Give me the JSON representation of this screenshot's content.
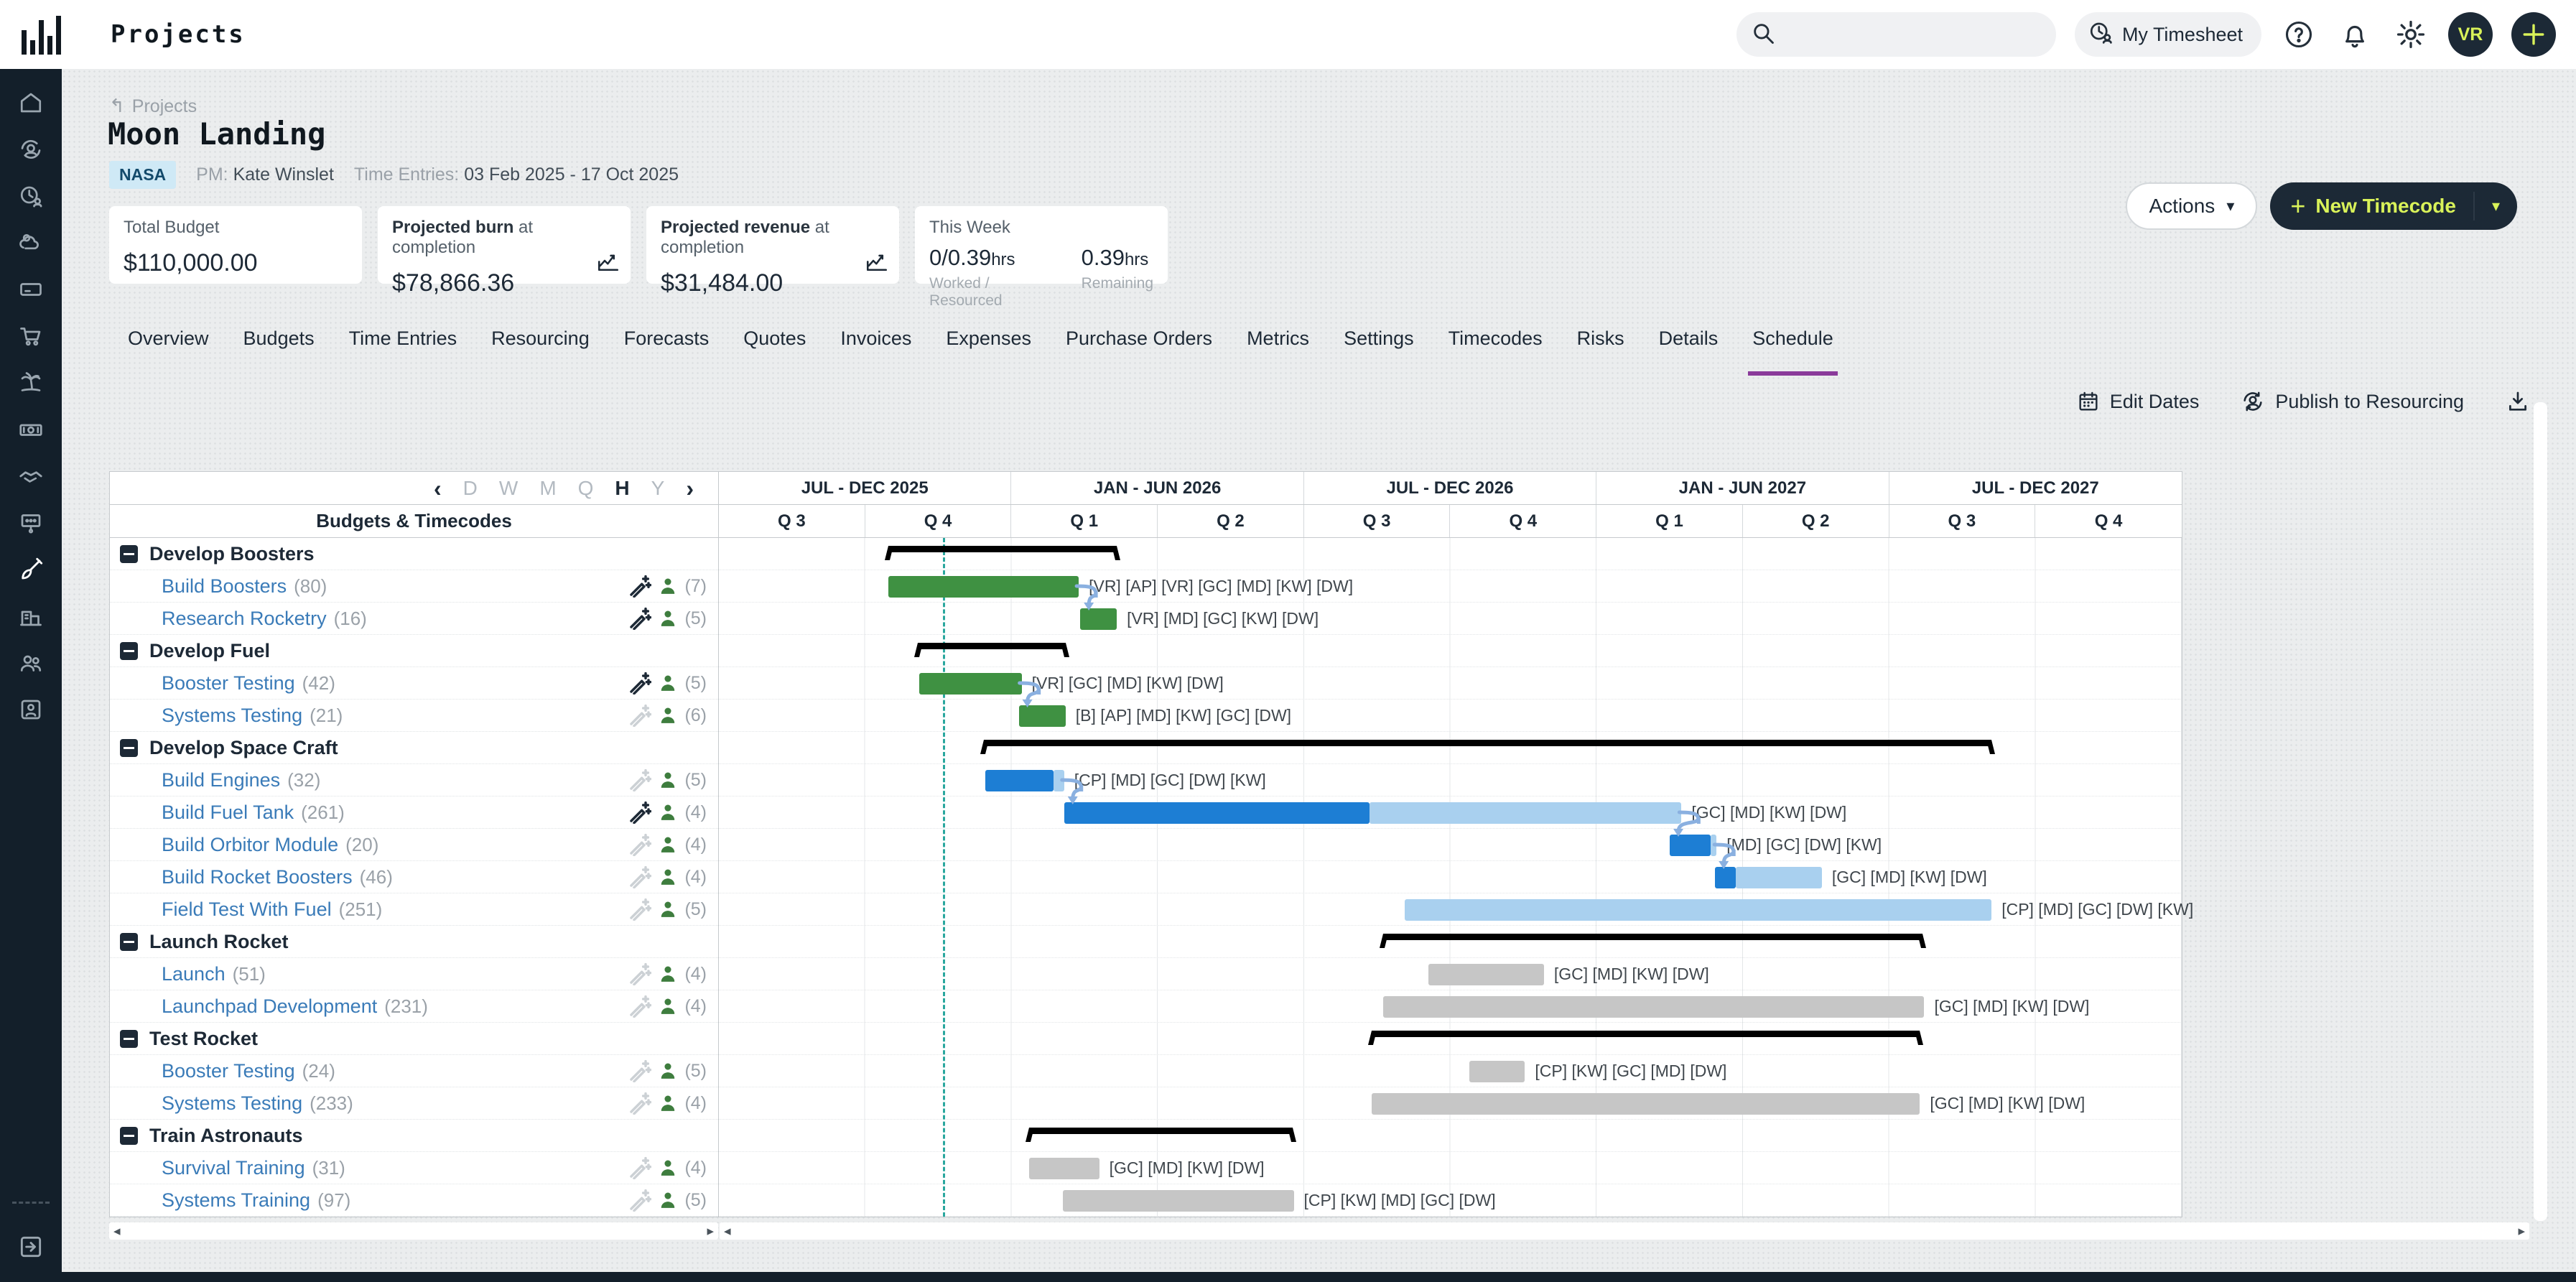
{
  "topbar": {
    "app_title": "Projects",
    "search_placeholder": "",
    "my_timesheet": "My Timesheet",
    "avatar_initials": "VR"
  },
  "breadcrumb": {
    "label": "Projects"
  },
  "project": {
    "title": "Moon Landing",
    "client": "NASA",
    "pm_label": "PM:",
    "pm": "Kate Winslet",
    "time_entries_label": "Time Entries:",
    "time_entries": "03 Feb 2025 - 17 Oct 2025",
    "actions_label": "Actions",
    "new_timecode_label": "New Timecode"
  },
  "cards": {
    "total_budget": {
      "title": "Total Budget",
      "value": "$110,000.00"
    },
    "projected_burn": {
      "title_bold": "Projected burn",
      "title_rest": " at completion",
      "value": "$78,866.36"
    },
    "projected_revenue": {
      "title_bold": "Projected revenue",
      "title_rest": " at completion",
      "value": "$31,484.00"
    },
    "this_week": {
      "title": "This Week",
      "worked_value": "0/0.39",
      "worked_unit": "hrs",
      "worked_caption": "Worked / Resourced",
      "remaining_value": "0.39",
      "remaining_unit": "hrs",
      "remaining_caption": "Remaining"
    }
  },
  "tabs": {
    "items": [
      "Overview",
      "Budgets",
      "Time Entries",
      "Resourcing",
      "Forecasts",
      "Quotes",
      "Invoices",
      "Expenses",
      "Purchase Orders",
      "Metrics",
      "Settings",
      "Timecodes",
      "Risks",
      "Details",
      "Schedule"
    ],
    "active": "Schedule"
  },
  "toolbar": {
    "edit_dates": "Edit Dates",
    "publish": "Publish to Resourcing"
  },
  "gantt": {
    "zoom_levels": [
      "D",
      "W",
      "M",
      "Q",
      "H",
      "Y"
    ],
    "active_zoom": "H",
    "tree_header": "Budgets & Timecodes",
    "periods": [
      {
        "label": "JUL - DEC 2025",
        "quarters": [
          "Q 3",
          "Q 4"
        ]
      },
      {
        "label": "JAN - JUN 2026",
        "quarters": [
          "Q 1",
          "Q 2"
        ]
      },
      {
        "label": "JUL - DEC 2026",
        "quarters": [
          "Q 3",
          "Q 4"
        ]
      },
      {
        "label": "JAN - JUN 2027",
        "quarters": [
          "Q 1",
          "Q 2"
        ]
      },
      {
        "label": "JUL - DEC 2027",
        "quarters": [
          "Q 3",
          "Q 4"
        ]
      }
    ],
    "today_pct": 15.3,
    "colors": {
      "green": "#3f9142",
      "blue": "#1d7ed4",
      "lightblue": "#a9d0ef",
      "gray": "#c6c6c6",
      "bracket": "#000000",
      "connector": "#8ab0e0",
      "today": "#2aa79e"
    },
    "rows": [
      {
        "type": "group",
        "label": "Develop Boosters",
        "bracket": [
          11.6,
          27.2
        ]
      },
      {
        "type": "task",
        "label": "Build Boosters",
        "count": "(80)",
        "wand": "active",
        "people": "(7)",
        "segments": [
          [
            11.6,
            24.6,
            "green"
          ]
        ],
        "bar_label": "[VR] [AP] [VR] [GC] [MD] [KW] [DW]",
        "connect_next": true
      },
      {
        "type": "task",
        "label": "Research Rocketry",
        "count": "(16)",
        "wand": "active",
        "people": "(5)",
        "segments": [
          [
            24.7,
            27.2,
            "green"
          ]
        ],
        "bar_label": "[VR] [MD] [GC] [KW] [DW]"
      },
      {
        "type": "group",
        "label": "Develop Fuel",
        "bracket": [
          13.6,
          23.7
        ]
      },
      {
        "type": "task",
        "label": "Booster Testing",
        "count": "(42)",
        "wand": "active",
        "people": "(5)",
        "segments": [
          [
            13.7,
            20.7,
            "green"
          ]
        ],
        "bar_label": "[VR] [GC] [MD] [KW] [DW]",
        "connect_next": true
      },
      {
        "type": "task",
        "label": "Systems Testing",
        "count": "(21)",
        "wand": "inactive",
        "people": "(6)",
        "segments": [
          [
            20.5,
            23.7,
            "green"
          ]
        ],
        "bar_label": "[B] [AP] [MD] [KW] [GC] [DW]"
      },
      {
        "type": "group",
        "label": "Develop Space Craft",
        "bracket": [
          18.1,
          87.0
        ]
      },
      {
        "type": "task",
        "label": "Build Engines",
        "count": "(32)",
        "wand": "inactive",
        "people": "(5)",
        "segments": [
          [
            18.2,
            22.9,
            "blue"
          ],
          [
            22.9,
            23.6,
            "lightblue"
          ]
        ],
        "bar_label": "[CP] [MD] [GC] [DW] [KW]",
        "connect_next": true
      },
      {
        "type": "task",
        "label": "Build Fuel Tank",
        "count": "(261)",
        "wand": "active",
        "people": "(4)",
        "segments": [
          [
            23.6,
            44.5,
            "blue"
          ],
          [
            44.5,
            65.8,
            "lightblue"
          ]
        ],
        "bar_label": "[GC] [MD] [KW] [DW]",
        "connect_next": true
      },
      {
        "type": "task",
        "label": "Build Orbitor Module",
        "count": "(20)",
        "wand": "inactive",
        "people": "(4)",
        "segments": [
          [
            65.0,
            67.8,
            "blue"
          ],
          [
            67.8,
            68.2,
            "lightblue"
          ]
        ],
        "bar_label": "[MD] [GC] [DW] [KW]",
        "connect_next": true
      },
      {
        "type": "task",
        "label": "Build Rocket Boosters",
        "count": "(46)",
        "wand": "inactive",
        "people": "(4)",
        "segments": [
          [
            68.1,
            69.5,
            "blue"
          ],
          [
            69.5,
            75.4,
            "lightblue"
          ]
        ],
        "bar_label": "[GC] [MD] [KW] [DW]"
      },
      {
        "type": "task",
        "label": "Field Test With Fuel",
        "count": "(251)",
        "wand": "inactive",
        "people": "(5)",
        "segments": [
          [
            46.9,
            87.0,
            "lightblue"
          ]
        ],
        "bar_label": "[CP] [MD] [GC] [DW] [KW]"
      },
      {
        "type": "group",
        "label": "Launch Rocket",
        "bracket": [
          45.4,
          82.3
        ]
      },
      {
        "type": "task",
        "label": "Launch",
        "count": "(51)",
        "wand": "inactive",
        "people": "(4)",
        "segments": [
          [
            48.5,
            56.4,
            "gray"
          ]
        ],
        "bar_label": "[GC] [MD] [KW] [DW]"
      },
      {
        "type": "task",
        "label": "Launchpad Development",
        "count": "(231)",
        "wand": "inactive",
        "people": "(4)",
        "segments": [
          [
            45.4,
            82.4,
            "gray"
          ]
        ],
        "bar_label": "[GC] [MD] [KW] [DW]"
      },
      {
        "type": "group",
        "label": "Test Rocket",
        "bracket": [
          44.6,
          82.1
        ]
      },
      {
        "type": "task",
        "label": "Booster Testing",
        "count": "(24)",
        "wand": "inactive",
        "people": "(5)",
        "segments": [
          [
            51.3,
            55.1,
            "gray"
          ]
        ],
        "bar_label": "[CP] [KW] [GC] [MD] [DW]"
      },
      {
        "type": "task",
        "label": "Systems Testing",
        "count": "(233)",
        "wand": "inactive",
        "people": "(4)",
        "segments": [
          [
            44.6,
            82.1,
            "gray"
          ]
        ],
        "bar_label": "[GC] [MD] [KW] [DW]"
      },
      {
        "type": "group",
        "label": "Train Astronauts",
        "bracket": [
          21.2,
          39.2
        ]
      },
      {
        "type": "task",
        "label": "Survival Training",
        "count": "(31)",
        "wand": "inactive",
        "people": "(4)",
        "segments": [
          [
            21.2,
            26.0,
            "gray"
          ]
        ],
        "bar_label": "[GC] [MD] [KW] [DW]"
      },
      {
        "type": "task",
        "label": "Systems Training",
        "count": "(97)",
        "wand": "inactive",
        "people": "(5)",
        "segments": [
          [
            23.5,
            39.3,
            "gray"
          ]
        ],
        "bar_label": "[CP] [KW] [MD] [GC] [DW]"
      }
    ]
  }
}
